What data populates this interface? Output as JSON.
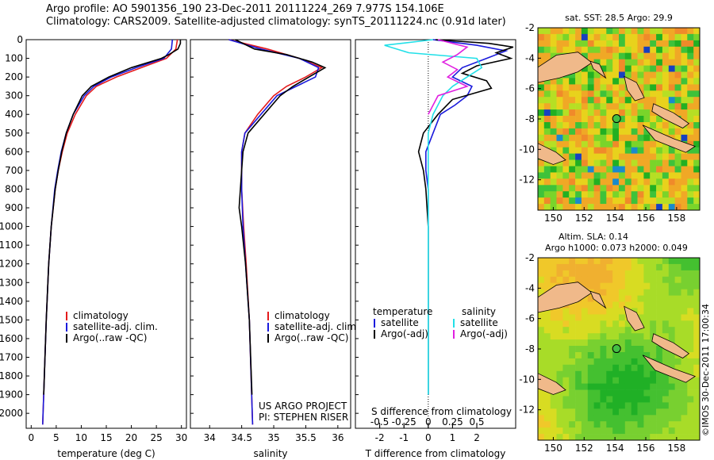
{
  "header": {
    "line1": "Argo profile: AO 5901356_190 23-Dec-2011 20111224_269 7.977S 154.106E",
    "line2": "Climatology: CARS2009. Satellite-adjusted climatology: synTS_20111224.nc (0.91d later)"
  },
  "colors": {
    "climatology": "#e41a1c",
    "satellite": "#1a1adc",
    "argo": "#000000",
    "sat_s": "#22e0e8",
    "argo_s": "#e020e0"
  },
  "chart_data": [
    {
      "type": "line",
      "xlabel": "temperature (deg C)",
      "ylabel": "",
      "xlim": [
        -1,
        31
      ],
      "ylim": [
        2080,
        0
      ],
      "xticks": [
        0,
        5,
        10,
        15,
        20,
        25,
        30
      ],
      "yticks": [
        0,
        100,
        200,
        300,
        400,
        500,
        600,
        700,
        800,
        900,
        1000,
        1100,
        1200,
        1300,
        1400,
        1500,
        1600,
        1700,
        1800,
        1900,
        2000
      ],
      "legend": [
        "climatology",
        "satellite-adj. clim.",
        "Argo(..raw -QC)"
      ],
      "series": [
        {
          "name": "climatology",
          "color": "#e41a1c",
          "depth": [
            0,
            50,
            100,
            150,
            200,
            250,
            300,
            400,
            500,
            600,
            700,
            800,
            1000,
            1200,
            1500,
            2060
          ],
          "values": [
            29.2,
            28.9,
            27.0,
            22.0,
            17.0,
            13.0,
            11.0,
            8.8,
            7.2,
            6.2,
            5.4,
            4.8,
            4.0,
            3.5,
            3.0,
            2.3
          ]
        },
        {
          "name": "satellite-adj. clim.",
          "color": "#1a1adc",
          "depth": [
            0,
            50,
            100,
            150,
            200,
            250,
            300,
            400,
            500,
            600,
            700,
            800,
            1000,
            1200,
            1500,
            2060
          ],
          "values": [
            28.2,
            28.0,
            26.5,
            21.0,
            16.0,
            12.5,
            10.6,
            8.4,
            7.0,
            6.0,
            5.3,
            4.7,
            4.0,
            3.5,
            3.0,
            2.3
          ]
        },
        {
          "name": "Argo(..raw -QC)",
          "color": "#000000",
          "depth": [
            0,
            20,
            50,
            80,
            100,
            150,
            200,
            250,
            300,
            400,
            500,
            600,
            700,
            800,
            1000,
            1200,
            1500,
            1900
          ],
          "values": [
            29.8,
            29.8,
            29.3,
            27.5,
            26.0,
            20.0,
            15.5,
            12.0,
            10.2,
            8.4,
            7.0,
            6.1,
            5.4,
            4.8,
            4.0,
            3.5,
            3.0,
            2.5
          ]
        }
      ]
    },
    {
      "type": "line",
      "xlabel": "salinity",
      "ylabel": "",
      "xlim": [
        33.7,
        36.2
      ],
      "ylim": [
        2080,
        0
      ],
      "xticks": [
        34,
        34.5,
        35,
        35.5,
        36
      ],
      "legend": [
        "climatology",
        "satellite-adj. clim.",
        "Argo(..raw -QC)"
      ],
      "series": [
        {
          "name": "climatology",
          "color": "#e41a1c",
          "depth": [
            0,
            50,
            100,
            150,
            200,
            250,
            300,
            400,
            500,
            600,
            800,
            1000,
            1200,
            1500,
            2060
          ],
          "values": [
            34.3,
            34.9,
            35.4,
            35.75,
            35.5,
            35.2,
            35.0,
            34.75,
            34.55,
            34.5,
            34.5,
            34.53,
            34.57,
            34.62,
            34.67
          ]
        },
        {
          "name": "satellite-adj. clim.",
          "color": "#1a1adc",
          "depth": [
            0,
            50,
            100,
            150,
            200,
            250,
            300,
            400,
            500,
            600,
            800,
            1000,
            1200,
            1500,
            2060
          ],
          "values": [
            34.3,
            34.8,
            35.4,
            35.7,
            35.65,
            35.35,
            35.05,
            34.8,
            34.55,
            34.5,
            34.5,
            34.52,
            34.56,
            34.62,
            34.67
          ]
        },
        {
          "name": "Argo(..raw -QC)",
          "color": "#000000",
          "depth": [
            0,
            50,
            80,
            120,
            150,
            200,
            250,
            300,
            400,
            500,
            600,
            700,
            800,
            900,
            1000,
            1200,
            1500,
            1900
          ],
          "values": [
            34.4,
            34.7,
            35.2,
            35.6,
            35.8,
            35.55,
            35.3,
            35.1,
            34.85,
            34.6,
            34.52,
            34.5,
            34.48,
            34.46,
            34.5,
            34.56,
            34.62,
            34.66
          ]
        }
      ]
    },
    {
      "type": "line",
      "xlabel": "T difference from climatology",
      "x2label": "S difference from climatology",
      "ylabel": "",
      "xlim": [
        -3,
        3.6
      ],
      "x2lim": [
        -0.75,
        0.9
      ],
      "ylim": [
        2080,
        0
      ],
      "xticks": [
        -2,
        -1,
        0,
        1,
        2
      ],
      "x2ticks": [
        -0.5,
        -0.25,
        0,
        0.25,
        0.5
      ],
      "legend": [
        "temperature",
        "satellite",
        "Argo(-adj)",
        "salinity",
        "satellite",
        "Argo(-adj)"
      ],
      "series": [
        {
          "name": "temperature satellite",
          "color": "#1a1adc",
          "axis": "T",
          "depth": [
            0,
            30,
            60,
            100,
            150,
            200,
            250,
            300,
            350,
            400,
            500,
            600,
            700,
            800,
            1000,
            1200,
            1500,
            1900
          ],
          "values": [
            0.2,
            2.0,
            3.2,
            2.4,
            1.4,
            1.0,
            1.8,
            1.6,
            1.1,
            0.5,
            0.2,
            -0.1,
            -0.1,
            0.0,
            0.0,
            0.0,
            0.0,
            0.0
          ]
        },
        {
          "name": "temperature Argo(-adj)",
          "color": "#000000",
          "axis": "T",
          "depth": [
            0,
            20,
            40,
            70,
            100,
            140,
            180,
            220,
            260,
            320,
            400,
            500,
            600,
            700,
            800,
            1000,
            1200,
            1500,
            1900
          ],
          "values": [
            0.3,
            2.5,
            3.5,
            2.8,
            3.4,
            2.0,
            1.4,
            2.4,
            2.6,
            1.0,
            0.4,
            -0.2,
            -0.4,
            -0.2,
            -0.1,
            0.0,
            0.0,
            0.0,
            0.0
          ]
        },
        {
          "name": "salinity satellite",
          "color": "#22e0e8",
          "axis": "S",
          "depth": [
            0,
            30,
            70,
            100,
            150,
            200,
            250,
            300,
            400,
            500,
            600,
            700,
            800,
            1000,
            1200,
            1500,
            1900
          ],
          "values": [
            0.05,
            -0.45,
            -0.2,
            0.5,
            0.55,
            0.4,
            0.25,
            0.15,
            0.05,
            0.0,
            0.0,
            0.0,
            0.0,
            0.0,
            0.0,
            0.0,
            0.0
          ]
        },
        {
          "name": "salinity Argo(-adj)",
          "color": "#e020e0",
          "axis": "S",
          "depth": [
            0,
            40,
            80,
            120,
            160,
            200,
            250,
            300,
            350,
            400
          ],
          "values": [
            0.1,
            0.4,
            0.3,
            0.15,
            0.3,
            0.2,
            0.4,
            0.1,
            0.05,
            0.0
          ]
        }
      ]
    },
    {
      "type": "heatmap",
      "title": "sat. SST: 28.5 Argo: 29.9",
      "xlim": [
        149,
        159.5
      ],
      "ylim": [
        -14,
        -2
      ],
      "xticks": [
        150,
        152,
        154,
        156,
        158
      ],
      "yticks": [
        -2,
        -4,
        -6,
        -8,
        -10,
        -12
      ],
      "marker": {
        "lon": 154.106,
        "lat": -7.977
      }
    },
    {
      "type": "heatmap",
      "title": "Altim. SLA: 0.14",
      "subtitle": "Argo h1000: 0.073 h2000: 0.049",
      "xlim": [
        149,
        159.5
      ],
      "ylim": [
        -14,
        -2
      ],
      "xticks": [
        150,
        152,
        154,
        156,
        158
      ],
      "yticks": [
        -2,
        -4,
        -6,
        -8,
        -10,
        -12
      ],
      "marker": {
        "lon": 154.106,
        "lat": -7.977
      }
    }
  ],
  "notes": {
    "project": "US ARGO PROJECT",
    "pi": "PI: STEPHEN RISER",
    "stamp": "©IMOS 30-Dec-2011 17:00:34"
  }
}
